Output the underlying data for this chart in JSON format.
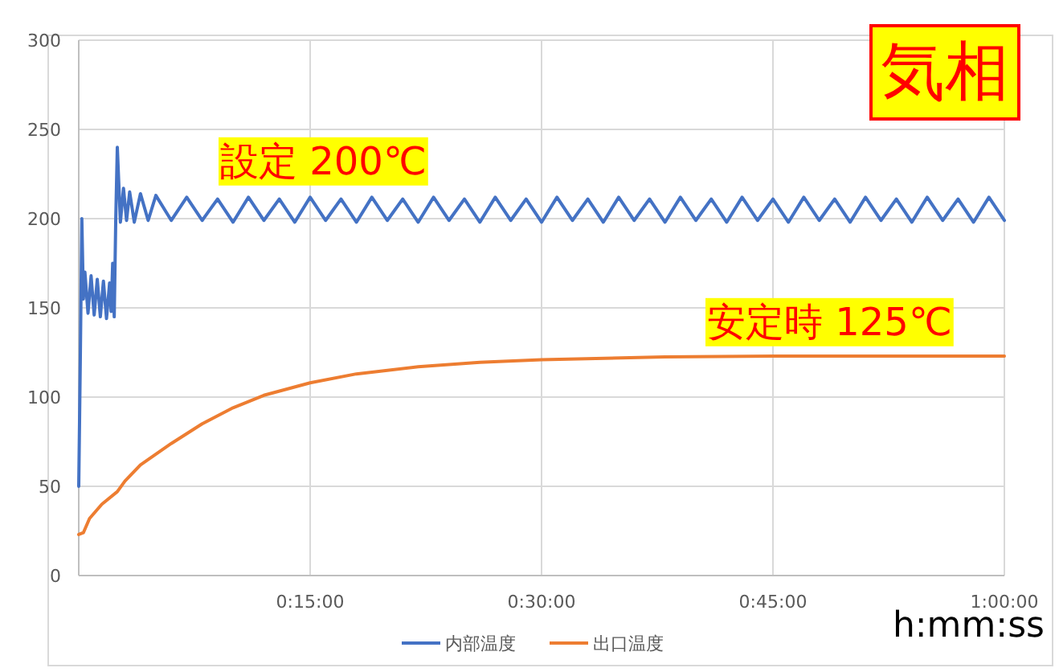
{
  "chart_data": {
    "type": "line",
    "xlabel": "h:mm:ss",
    "annotations": [
      "設定 200℃",
      "安定時 125℃",
      "気相"
    ],
    "xlim": [
      0,
      60
    ],
    "ylim": [
      0,
      300
    ],
    "xticks": [
      {
        "value": 15,
        "label": "0:15:00"
      },
      {
        "value": 30,
        "label": "0:30:00"
      },
      {
        "value": 45,
        "label": "0:45:00"
      },
      {
        "value": 60,
        "label": "1:00:00"
      }
    ],
    "yticks": [
      0,
      50,
      100,
      150,
      200,
      250,
      300
    ],
    "grid": true,
    "legend": "bottom",
    "series": [
      {
        "name": "内部温度",
        "color": "#4472c4",
        "x": [
          0,
          0.1,
          0.2,
          0.3,
          0.4,
          0.6,
          0.8,
          1.0,
          1.2,
          1.4,
          1.6,
          1.8,
          2.0,
          2.1,
          2.2,
          2.3,
          2.4,
          2.5,
          2.7,
          2.9,
          3.1,
          3.3,
          3.6,
          4.0,
          4.5,
          5.0,
          6.0,
          7.0,
          8.0,
          9.0,
          10.0,
          11.0,
          12.0,
          13.0,
          14.0,
          15.0,
          16.0,
          17.0,
          18.0,
          19.0,
          20.0,
          21.0,
          22.0,
          23.0,
          24.0,
          25.0,
          26.0,
          27.0,
          28.0,
          29.0,
          30.0,
          31.0,
          32.0,
          33.0,
          34.0,
          35.0,
          36.0,
          37.0,
          38.0,
          39.0,
          40.0,
          41.0,
          42.0,
          43.0,
          44.0,
          45.0,
          46.0,
          47.0,
          48.0,
          49.0,
          50.0,
          51.0,
          52.0,
          53.0,
          54.0,
          55.0,
          56.0,
          57.0,
          58.0,
          59.0,
          60.0
        ],
        "values": [
          50,
          120,
          200,
          155,
          170,
          147,
          168,
          146,
          166,
          145,
          165,
          144,
          164,
          148,
          175,
          145,
          200,
          240,
          198,
          217,
          199,
          215,
          198,
          214,
          199,
          213,
          199,
          212,
          199,
          211,
          198,
          212,
          199,
          211,
          198,
          212,
          199,
          211,
          198,
          212,
          199,
          211,
          198,
          212,
          199,
          211,
          198,
          212,
          199,
          211,
          198,
          212,
          199,
          211,
          198,
          212,
          199,
          211,
          198,
          212,
          199,
          211,
          198,
          212,
          199,
          211,
          198,
          212,
          199,
          211,
          198,
          212,
          199,
          211,
          198,
          212,
          199,
          211,
          198,
          212,
          199
        ]
      },
      {
        "name": "出口温度",
        "color": "#ed7d31",
        "x": [
          0,
          0.3,
          0.7,
          1.5,
          2.5,
          3,
          4,
          6,
          8,
          10,
          12,
          15,
          18,
          22,
          26,
          30,
          38,
          45,
          60
        ],
        "values": [
          23,
          24,
          32,
          40,
          47,
          53,
          62,
          74,
          85,
          94,
          101,
          108,
          113,
          117,
          119.5,
          121,
          122.5,
          123,
          123
        ]
      }
    ]
  }
}
